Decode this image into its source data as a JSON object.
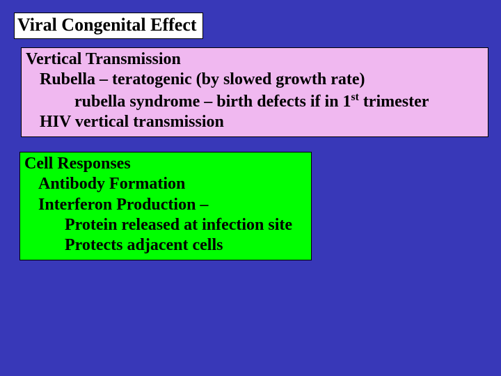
{
  "colors": {
    "slide_bg": "#3838b8",
    "title_bg": "#ffffff",
    "pink_bg": "#f0b8f0",
    "green_bg": "#00ff00",
    "border": "#000000",
    "text": "#000000"
  },
  "typography": {
    "font_family": "Times New Roman",
    "title_fontsize": 26,
    "body_fontsize": 24,
    "weight": "bold"
  },
  "title": {
    "text": "Viral Congenital Effect"
  },
  "pink_box": {
    "lines": [
      {
        "text": "Vertical Transmission",
        "indent": 0
      },
      {
        "text": "Rubella – teratogenic (by slowed growth rate)",
        "indent": 1
      },
      {
        "text_html": "rubella syndrome – birth defects if in 1<sup>st</sup> trimester",
        "indent": 2
      },
      {
        "text": "HIV vertical transmission",
        "indent": 1
      }
    ]
  },
  "green_box": {
    "lines": [
      {
        "text": "Cell Responses",
        "indent": 0
      },
      {
        "text": "Antibody Formation",
        "indent": 1
      },
      {
        "text": "Interferon Production –",
        "indent": 1
      },
      {
        "text": "Protein released at infection site",
        "indent": 3
      },
      {
        "text": "Protects adjacent cells",
        "indent": 3
      }
    ]
  }
}
